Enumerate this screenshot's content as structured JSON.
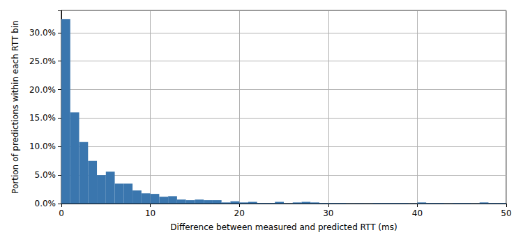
{
  "chart_data": {
    "type": "histogram",
    "x_label": "Difference between measured and predicted RTT (ms)",
    "y_label": "Portion of predictions within each RTT bin",
    "bins": [
      0,
      1,
      2,
      3,
      4,
      5,
      6,
      7,
      8,
      9,
      10,
      11,
      12,
      13,
      14,
      15,
      16,
      17,
      18,
      19,
      20,
      21,
      22,
      23,
      24,
      25,
      26,
      27,
      28,
      29,
      30,
      31,
      32,
      33,
      34,
      35,
      36,
      37,
      38,
      39,
      40,
      41,
      42,
      43,
      44,
      45,
      46,
      47,
      48,
      49,
      50
    ],
    "values": [
      32.4,
      16.0,
      10.8,
      7.5,
      5.0,
      5.6,
      3.5,
      3.5,
      2.3,
      1.8,
      1.7,
      1.2,
      1.3,
      0.7,
      0.6,
      0.7,
      0.6,
      0.6,
      0.2,
      0.4,
      0.2,
      0.3,
      0.1,
      0.1,
      0.3,
      0.05,
      0.2,
      0.3,
      0.2,
      0.1,
      0.1,
      0.1,
      0.05,
      0.05,
      0.05,
      0.1,
      0.1,
      0.1,
      0.1,
      0.05,
      0.2,
      0.1,
      0.1,
      0.05,
      0.1,
      0.1,
      0.05,
      0.2,
      0.1,
      0.1
    ],
    "color": "#3a76ae",
    "xlim": [
      0,
      50
    ],
    "xticks": [
      0,
      10,
      20,
      30,
      40,
      50
    ],
    "ylim": [
      0,
      33.9
    ],
    "yticks": [
      {
        "value": 0,
        "label": "0.0%"
      },
      {
        "value": 5,
        "label": "5.0%"
      },
      {
        "value": 10,
        "label": "10.0%"
      },
      {
        "value": 15,
        "label": "15.0%"
      },
      {
        "value": 20,
        "label": "20.0%"
      },
      {
        "value": 25,
        "label": "25.0%"
      },
      {
        "value": 30,
        "label": "30.0%"
      }
    ],
    "grid": true
  }
}
